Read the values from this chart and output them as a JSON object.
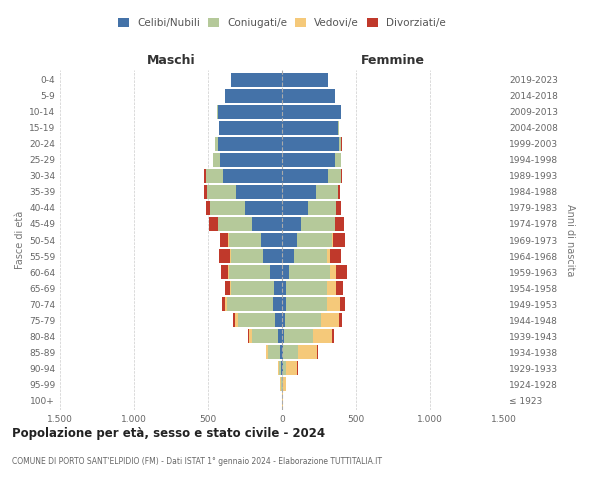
{
  "age_groups": [
    "100+",
    "95-99",
    "90-94",
    "85-89",
    "80-84",
    "75-79",
    "70-74",
    "65-69",
    "60-64",
    "55-59",
    "50-54",
    "45-49",
    "40-44",
    "35-39",
    "30-34",
    "25-29",
    "20-24",
    "15-19",
    "10-14",
    "5-9",
    "0-4"
  ],
  "birth_years": [
    "≤ 1923",
    "1924-1928",
    "1929-1933",
    "1934-1938",
    "1939-1943",
    "1944-1948",
    "1949-1953",
    "1954-1958",
    "1959-1963",
    "1964-1968",
    "1969-1973",
    "1974-1978",
    "1979-1983",
    "1984-1988",
    "1989-1993",
    "1994-1998",
    "1999-2003",
    "2004-2008",
    "2009-2013",
    "2014-2018",
    "2019-2023"
  ],
  "maschi": {
    "celibi": [
      2,
      3,
      5,
      12,
      25,
      45,
      60,
      55,
      80,
      130,
      145,
      205,
      250,
      310,
      400,
      420,
      435,
      425,
      435,
      385,
      345
    ],
    "coniugati": [
      1,
      7,
      15,
      80,
      175,
      255,
      310,
      290,
      275,
      215,
      215,
      225,
      235,
      195,
      115,
      45,
      18,
      4,
      2,
      0,
      0
    ],
    "vedovi": [
      0,
      2,
      5,
      14,
      20,
      18,
      14,
      9,
      7,
      4,
      3,
      2,
      1,
      1,
      1,
      0,
      0,
      0,
      0,
      0,
      0
    ],
    "divorziati": [
      0,
      0,
      2,
      5,
      10,
      14,
      20,
      28,
      48,
      78,
      58,
      58,
      28,
      18,
      9,
      4,
      2,
      0,
      0,
      0,
      0
    ]
  },
  "femmine": {
    "nubili": [
      1,
      3,
      5,
      8,
      13,
      18,
      28,
      28,
      48,
      78,
      98,
      128,
      178,
      228,
      308,
      358,
      388,
      378,
      398,
      358,
      308
    ],
    "coniugate": [
      1,
      4,
      20,
      98,
      198,
      248,
      278,
      278,
      278,
      228,
      238,
      228,
      188,
      148,
      88,
      38,
      13,
      4,
      2,
      0,
      0
    ],
    "vedove": [
      2,
      18,
      78,
      128,
      128,
      118,
      88,
      58,
      38,
      18,
      9,
      4,
      2,
      1,
      1,
      0,
      0,
      0,
      0,
      0,
      0
    ],
    "divorziate": [
      0,
      2,
      4,
      7,
      14,
      24,
      34,
      48,
      78,
      78,
      78,
      58,
      28,
      18,
      9,
      4,
      2,
      0,
      0,
      0,
      0
    ]
  },
  "colors": {
    "celibi": "#4472a8",
    "coniugati": "#b5c99a",
    "vedovi": "#f5c97a",
    "divorziati": "#c0392b"
  },
  "title": "Popolazione per età, sesso e stato civile - 2024",
  "subtitle": "COMUNE DI PORTO SANT'ELPIDIO (FM) - Dati ISTAT 1° gennaio 2024 - Elaborazione TUTTITALIA.IT",
  "xlabel_left": "Maschi",
  "xlabel_right": "Femmine",
  "ylabel_left": "Fasce di età",
  "ylabel_right": "Anni di nascita",
  "xlim": 1500,
  "bg_color": "#ffffff",
  "grid_color": "#cccccc",
  "legend_labels": [
    "Celibi/Nubili",
    "Coniugati/e",
    "Vedovi/e",
    "Divorziati/e"
  ]
}
